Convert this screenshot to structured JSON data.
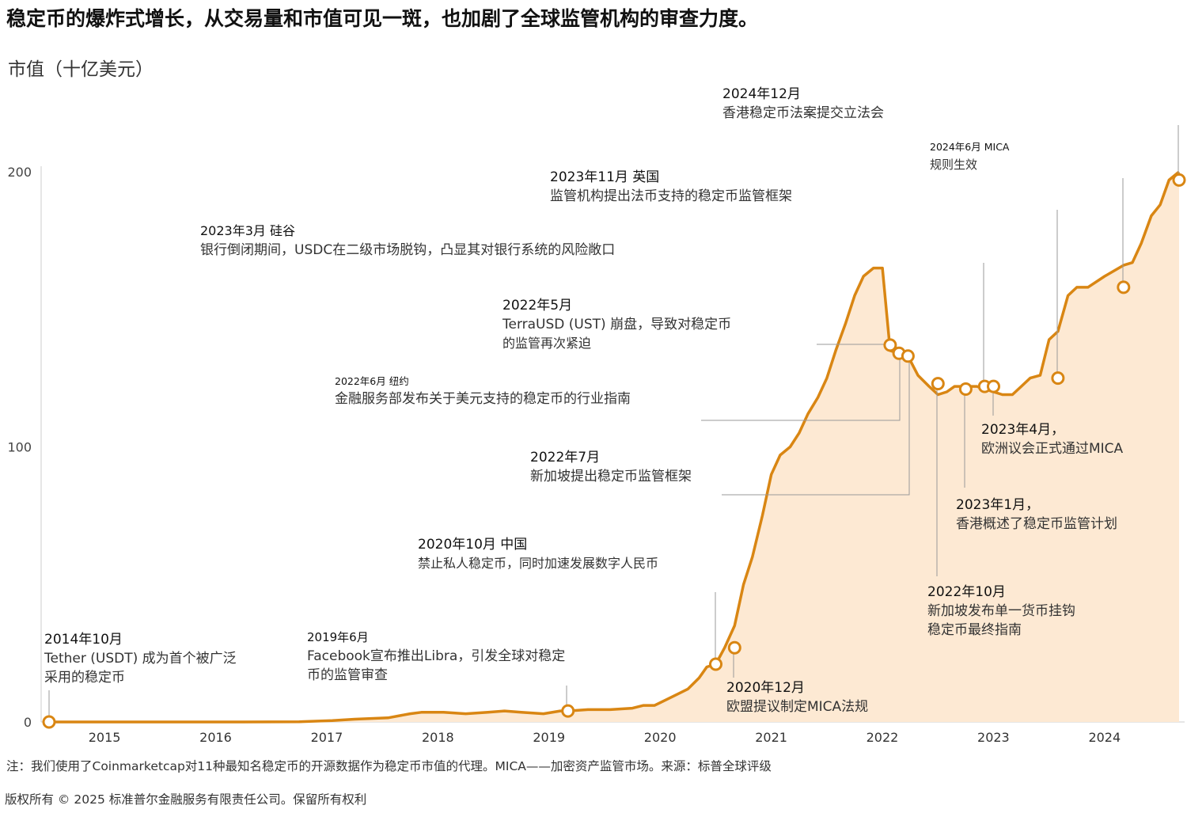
{
  "headline": "稳定币的爆炸式增长，从交易量和市值可见一斑，也加剧了全球监管机构的审查力度。",
  "colors": {
    "line": "#d98613",
    "area": "#fde9d3",
    "marker_fill": "#ffffff",
    "leader": "#999999",
    "axis": "#cccccc"
  },
  "chart_data": {
    "type": "area",
    "ylabel": "市值（十亿美元）",
    "ylim": [
      0,
      200
    ],
    "xlim": [
      2014.75,
      2024.97
    ],
    "y_ticks": [
      0,
      100,
      200
    ],
    "x_ticks": [
      {
        "label": "2015",
        "value": 2015
      },
      {
        "label": "2016",
        "value": 2016
      },
      {
        "label": "2017",
        "value": 2017
      },
      {
        "label": "2018",
        "value": 2018
      },
      {
        "label": "2019",
        "value": 2019
      },
      {
        "label": "2020",
        "value": 2020
      },
      {
        "label": "2021",
        "value": 2021
      },
      {
        "label": "2022",
        "value": 2022
      },
      {
        "label": "2023",
        "value": 2023
      },
      {
        "label": "2024",
        "value": 2024
      }
    ],
    "series": [
      {
        "x": [
          2014.75,
          2015.0,
          2015.5,
          2016.0,
          2016.5,
          2017.0,
          2017.3,
          2017.5,
          2017.8,
          2018.0,
          2018.1,
          2018.3,
          2018.5,
          2018.7,
          2018.85,
          2019.0,
          2019.2,
          2019.35,
          2019.42,
          2019.6,
          2019.8,
          2020.0,
          2020.1,
          2020.2,
          2020.3,
          2020.4,
          2020.5,
          2020.6,
          2020.67,
          2020.75,
          2020.83,
          2020.92,
          2021.0,
          2021.08,
          2021.17,
          2021.25,
          2021.33,
          2021.42,
          2021.5,
          2021.58,
          2021.67,
          2021.75,
          2021.83,
          2021.92,
          2022.0,
          2022.08,
          2022.17,
          2022.25,
          2022.32,
          2022.4,
          2022.48,
          2022.57,
          2022.67,
          2022.75,
          2022.83,
          2022.9,
          2023.0,
          2023.1,
          2023.17,
          2023.25,
          2023.33,
          2023.42,
          2023.5,
          2023.58,
          2023.67,
          2023.75,
          2023.83,
          2023.92,
          2024.0,
          2024.1,
          2024.25,
          2024.42,
          2024.5,
          2024.58,
          2024.67,
          2024.75,
          2024.83,
          2024.92
        ],
        "y": [
          0,
          0,
          0,
          0,
          0,
          0.1,
          0.5,
          1,
          1.5,
          3,
          3.5,
          3.5,
          3,
          3.5,
          4,
          3.5,
          3,
          4,
          4,
          4.5,
          4.5,
          5,
          6,
          6,
          8,
          10,
          12,
          16,
          20,
          21,
          27,
          35,
          50,
          60,
          75,
          90,
          97,
          100,
          105,
          112,
          118,
          125,
          135,
          145,
          155,
          162,
          165,
          165,
          135,
          134,
          133,
          126,
          122,
          119,
          120,
          122,
          122,
          122,
          121,
          120,
          119,
          119,
          122,
          125,
          126,
          139,
          142,
          155,
          158,
          158,
          162,
          166,
          167,
          174,
          184,
          188,
          197,
          200
        ]
      }
    ],
    "annotations": [
      {
        "date": "2014年10月",
        "text": [
          "Tether (USDT) 成为首个被广泛",
          "采用的稳定币"
        ],
        "x": 2014.75,
        "y": 0
      },
      {
        "date": "2019年6月",
        "text": [
          "Facebook宣布推出Libra，引发全球对稳定",
          "币的监管审查"
        ],
        "x": 2019.42,
        "y": 4
      },
      {
        "date": "2020年10月 中国",
        "text": [
          "禁止私人稳定币，同时加速发展数字人民币"
        ],
        "x": 2020.75,
        "y": 21
      },
      {
        "date": "2020年12月",
        "text": [
          "欧盟提议制定MICA法规"
        ],
        "x": 2020.92,
        "y": 27
      },
      {
        "date": "2022年5月",
        "text": [
          "TerraUSD (UST) 崩盘，导致对稳定币",
          "的监管再次紧迫"
        ],
        "x": 2022.32,
        "y": 137
      },
      {
        "date": "2022年6月 纽约",
        "text": [
          "金融服务部发布关于美元支持的稳定币的行业指南"
        ],
        "x": 2022.4,
        "y": 134
      },
      {
        "date": "2022年7月",
        "text": [
          "新加坡提出稳定币监管框架"
        ],
        "x": 2022.48,
        "y": 133
      },
      {
        "date": "2022年10月",
        "text": [
          "新加坡发布单一货币挂钩",
          "稳定币最终指南"
        ],
        "x": 2022.75,
        "y": 123
      },
      {
        "date": "2023年1月，",
        "text": [
          "香港概述了稳定币监管计划"
        ],
        "x": 2023.0,
        "y": 121
      },
      {
        "date": "2023年3月 硅谷",
        "text": [
          "银行倒闭期间，USDC在二级市场脱钩，凸显其对银行系统的风险敞口"
        ],
        "x": 2023.17,
        "y": 122
      },
      {
        "date": "2023年4月，",
        "text": [
          "欧洲议会正式通过MICA"
        ],
        "x": 2023.25,
        "y": 122
      },
      {
        "date": "2023年11月 英国",
        "text": [
          "监管机构提出法币支持的稳定币监管框架"
        ],
        "x": 2023.83,
        "y": 125
      },
      {
        "date": "2024年6月 MICA",
        "text": [
          "规则生效"
        ],
        "x": 2024.42,
        "y": 158
      },
      {
        "date": "2024年12月",
        "text": [
          "香港稳定币法案提交立法会"
        ],
        "x": 2024.92,
        "y": 197
      }
    ]
  },
  "footer": {
    "note": "注：我们使用了Coinmarketcap对11种最知名稳定币的开源数据作为稳定币市值的代理。MICA——加密资产监管市场。来源：标普全球评级",
    "copyright": "版权所有 © 2025 标准普尔金融服务有限责任公司。保留所有权利"
  }
}
